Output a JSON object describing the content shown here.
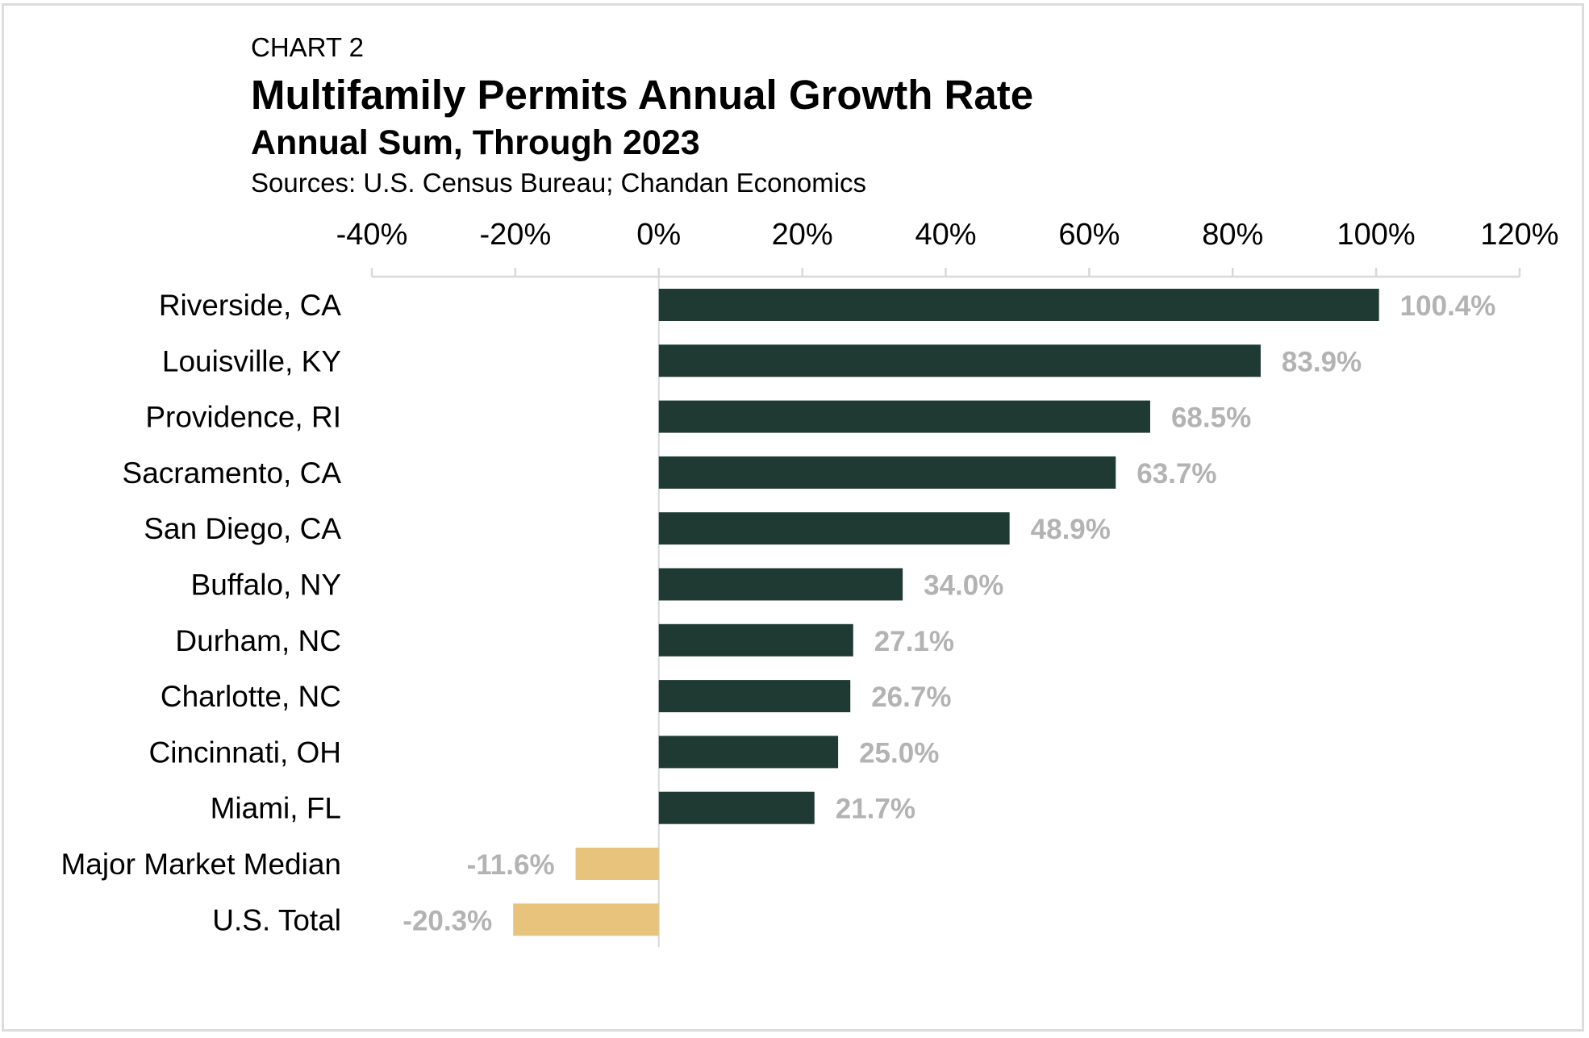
{
  "chart_data": {
    "type": "bar",
    "orientation": "horizontal",
    "kicker": "CHART 2",
    "title": "Multifamily Permits Annual Growth Rate",
    "subtitle": "Annual Sum, Through 2023",
    "source": "Sources: U.S. Census Bureau; Chandan Economics",
    "categories": [
      "Riverside, CA",
      "Louisville, KY",
      "Providence, RI",
      "Sacramento, CA",
      "San Diego, CA",
      "Buffalo, NY",
      "Durham, NC",
      "Charlotte, NC",
      "Cincinnati, OH",
      "Miami, FL",
      "Major Market Median",
      "U.S. Total"
    ],
    "values": [
      100.4,
      83.9,
      68.5,
      63.7,
      48.9,
      34.0,
      27.1,
      26.7,
      25.0,
      21.7,
      -11.6,
      -20.3
    ],
    "data_labels": [
      "100.4%",
      "83.9%",
      "68.5%",
      "63.7%",
      "48.9%",
      "34.0%",
      "27.1%",
      "26.7%",
      "25.0%",
      "21.7%",
      "-11.6%",
      "-20.3%"
    ],
    "bar_colors": [
      "#1e3a32",
      "#1e3a32",
      "#1e3a32",
      "#1e3a32",
      "#1e3a32",
      "#1e3a32",
      "#1e3a32",
      "#1e3a32",
      "#1e3a32",
      "#1e3a32",
      "#e8c37c",
      "#e8c37c"
    ],
    "xlim": [
      -40,
      120
    ],
    "x_ticks": [
      -40,
      -20,
      0,
      20,
      40,
      60,
      80,
      100,
      120
    ],
    "x_tick_labels": [
      "-40%",
      "-20%",
      "0%",
      "20%",
      "40%",
      "60%",
      "80%",
      "100%",
      "120%"
    ],
    "x_axis_position": "top",
    "grid": false,
    "label_color": "#b3b3b3"
  }
}
